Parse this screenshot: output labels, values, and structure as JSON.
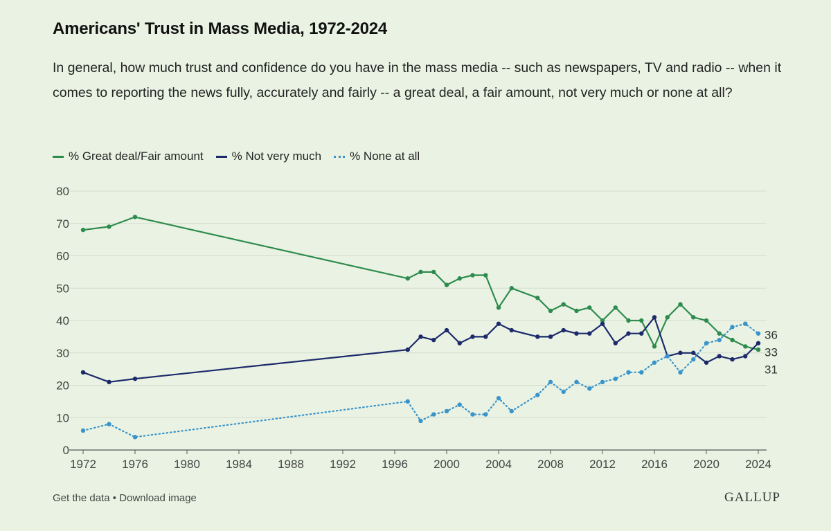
{
  "header": {
    "title": "Americans' Trust in Mass Media, 1972-2024",
    "subtitle": "In general, how much trust and confidence do you have in the mass media -- such as newspapers, TV and radio -- when it comes to reporting the news fully, accurately and fairly -- a great deal, a fair amount, not very much or none at all?"
  },
  "footer": {
    "get_data": "Get the data",
    "separator": " • ",
    "download": "Download image",
    "brand": "GALLUP"
  },
  "chart_data": {
    "type": "line",
    "xlim": [
      1972,
      2024
    ],
    "ylim": [
      0,
      80
    ],
    "x_ticks": [
      1972,
      1976,
      1980,
      1984,
      1988,
      1992,
      1996,
      2000,
      2004,
      2008,
      2012,
      2016,
      2020,
      2024
    ],
    "y_ticks": [
      0,
      10,
      20,
      30,
      40,
      50,
      60,
      70,
      80
    ],
    "grid": true,
    "legend_position": "top-left",
    "series": [
      {
        "name": "% Great deal/Fair amount",
        "color": "#2e8b4e",
        "style": "solid",
        "end_label": "31",
        "x": [
          1972,
          1974,
          1976,
          1997,
          1998,
          1999,
          2000,
          2001,
          2002,
          2003,
          2004,
          2005,
          2007,
          2008,
          2009,
          2010,
          2011,
          2012,
          2013,
          2014,
          2015,
          2016,
          2017,
          2018,
          2019,
          2020,
          2021,
          2022,
          2023,
          2024
        ],
        "values": [
          68,
          69,
          72,
          53,
          55,
          55,
          51,
          53,
          54,
          54,
          44,
          50,
          47,
          43,
          45,
          43,
          44,
          40,
          44,
          40,
          40,
          32,
          41,
          45,
          41,
          40,
          36,
          34,
          32,
          31
        ]
      },
      {
        "name": "% Not very much",
        "color": "#1c2a6b",
        "style": "solid",
        "end_label": "33",
        "x": [
          1972,
          1974,
          1976,
          1997,
          1998,
          1999,
          2000,
          2001,
          2002,
          2003,
          2004,
          2005,
          2007,
          2008,
          2009,
          2010,
          2011,
          2012,
          2013,
          2014,
          2015,
          2016,
          2017,
          2018,
          2019,
          2020,
          2021,
          2022,
          2023,
          2024
        ],
        "values": [
          24,
          21,
          22,
          31,
          35,
          34,
          37,
          33,
          35,
          35,
          39,
          37,
          35,
          35,
          37,
          36,
          36,
          39,
          33,
          36,
          36,
          41,
          29,
          30,
          30,
          27,
          29,
          28,
          29,
          33
        ]
      },
      {
        "name": "% None at all",
        "color": "#3a94c9",
        "style": "dotted",
        "end_label": "36",
        "x": [
          1972,
          1974,
          1976,
          1997,
          1998,
          1999,
          2000,
          2001,
          2002,
          2003,
          2004,
          2005,
          2007,
          2008,
          2009,
          2010,
          2011,
          2012,
          2013,
          2014,
          2015,
          2016,
          2017,
          2018,
          2019,
          2020,
          2021,
          2022,
          2023,
          2024
        ],
        "values": [
          6,
          8,
          4,
          15,
          9,
          11,
          12,
          14,
          11,
          11,
          16,
          12,
          17,
          21,
          18,
          21,
          19,
          21,
          22,
          24,
          24,
          27,
          29,
          24,
          28,
          33,
          34,
          38,
          39,
          36
        ]
      }
    ]
  }
}
